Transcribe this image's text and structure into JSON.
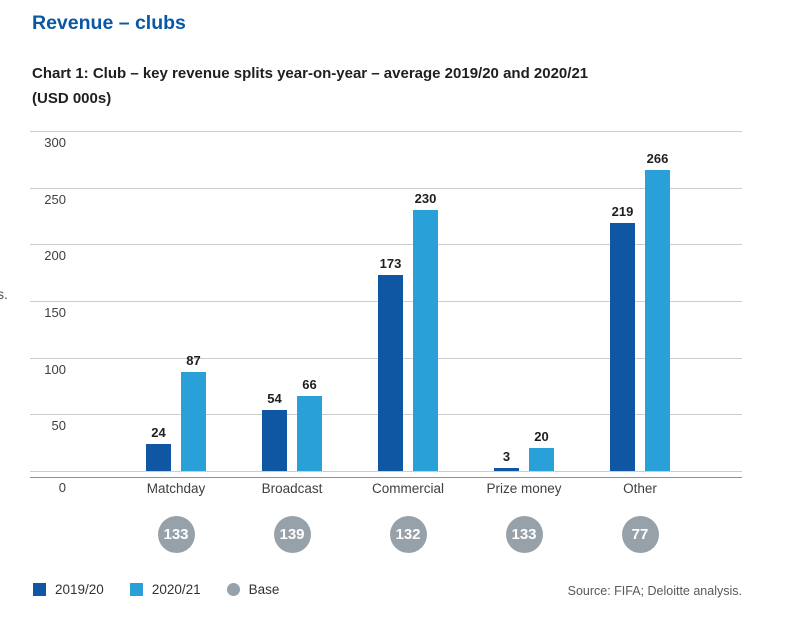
{
  "header": {
    "page_title": "Revenue – clubs",
    "chart_title_line1": "Chart 1: Club – key revenue splits year-on-year – average 2019/20 and 2020/21",
    "chart_title_line2": "(USD 000s)"
  },
  "left_margin_fragment": "s.",
  "chart_data": {
    "type": "bar",
    "title": "Chart 1: Club – key revenue splits year-on-year – average 2019/20 and 2020/21 (USD 000s)",
    "categories": [
      "Matchday",
      "Broadcast",
      "Commercial",
      "Prize money",
      "Other"
    ],
    "series": [
      {
        "name": "2019/20",
        "color": "#0f56a3",
        "values": [
          24,
          54,
          173,
          3,
          219
        ]
      },
      {
        "name": "2020/21",
        "color": "#2aa0d8",
        "values": [
          87,
          66,
          230,
          20,
          266
        ]
      }
    ],
    "base": {
      "name": "Base",
      "color": "#97a1a9",
      "values": [
        133,
        139,
        132,
        133,
        77
      ]
    },
    "xlabel": "",
    "ylabel": "",
    "ylim": [
      0,
      300
    ],
    "yticks": [
      0,
      50,
      100,
      150,
      200,
      250,
      300
    ],
    "grid": true,
    "legend_position": "bottom-left"
  },
  "footer": {
    "source": "Source: FIFA; Deloitte analysis."
  }
}
